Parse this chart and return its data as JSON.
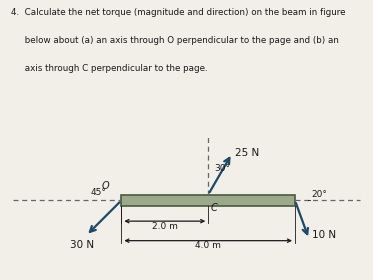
{
  "bg_color": "#f2efe9",
  "text_color": "#1a1a1a",
  "beam_color": "#9aaa8a",
  "beam_dark": "#4a5a3a",
  "arrow_color": "#1a4a6a",
  "title_lines": [
    "4.  Calculate the net torque (magnitude and direction) on the beam in figure",
    "     below about (a) an axis through O perpendicular to the page and (b) an",
    "     axis through C perpendicular to the page."
  ],
  "label_25N": "25 N",
  "label_30N": "30 N",
  "label_10N": "10 N",
  "label_O": "O",
  "label_C": "C",
  "angle_30_label": "30°",
  "angle_45_label": "45°",
  "angle_20_label": "20°",
  "dist_2m_label": "2.0 m",
  "dist_4m_label": "4.0 m"
}
